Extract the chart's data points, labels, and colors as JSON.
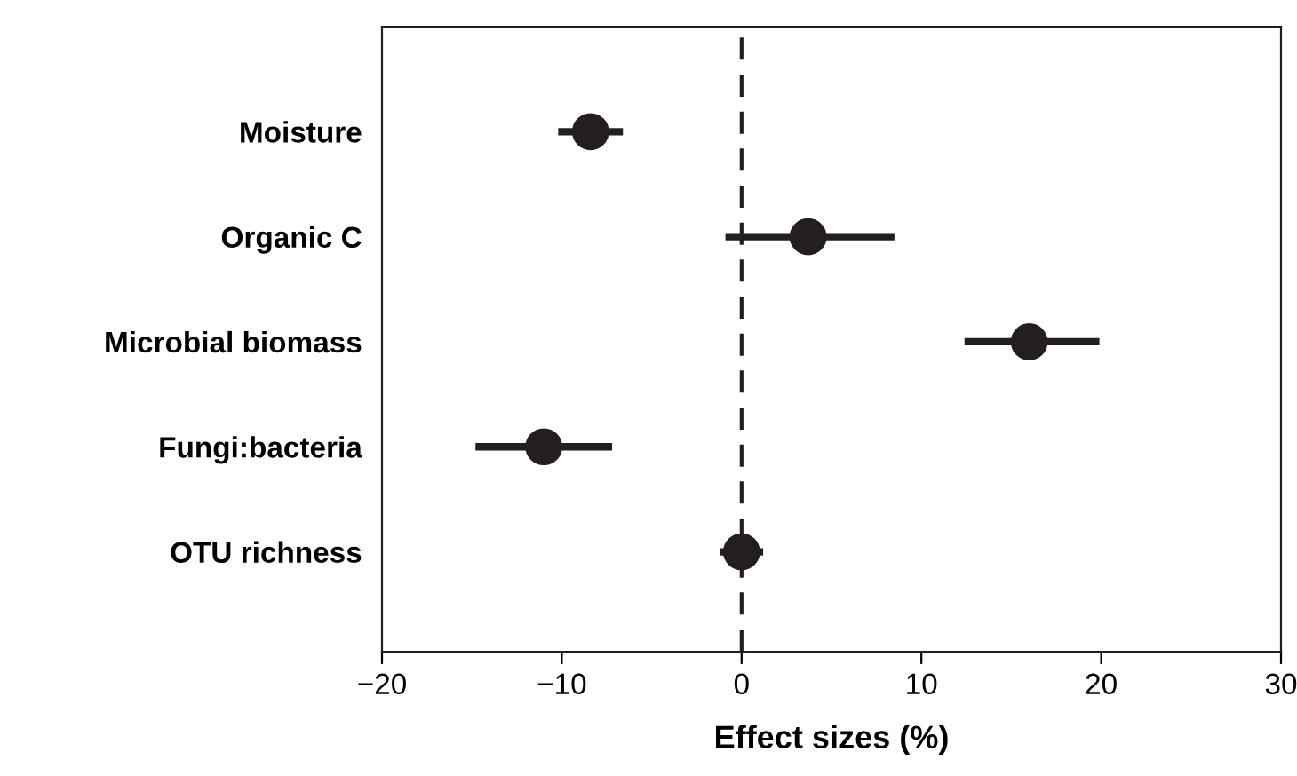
{
  "chart_data": {
    "type": "scatter",
    "orientation": "horizontal",
    "xlabel": "Effect sizes (%)",
    "categories": [
      "Moisture",
      "Organic C",
      "Microbial biomass",
      "Fungi:bacteria",
      "OTU richness"
    ],
    "series": [
      {
        "color": "#231f20",
        "values": [
          -8.4,
          3.7,
          16.0,
          -11.0,
          0.0
        ],
        "errors": [
          [
            -10.2,
            -6.6
          ],
          [
            -0.9,
            8.5
          ],
          [
            12.4,
            19.9
          ],
          [
            -14.8,
            -7.2
          ],
          [
            -1.2,
            1.2
          ]
        ]
      }
    ],
    "marker": "circle",
    "xlim": [
      -20,
      30
    ],
    "xticks": [
      {
        "value": -20,
        "label": "−20"
      },
      {
        "value": -10,
        "label": "−10"
      },
      0,
      10,
      20,
      30
    ],
    "ref_lines": [
      {
        "axis": "x",
        "value": 0,
        "color": "#231f20",
        "line_style": "dashed"
      }
    ],
    "grid": false
  }
}
